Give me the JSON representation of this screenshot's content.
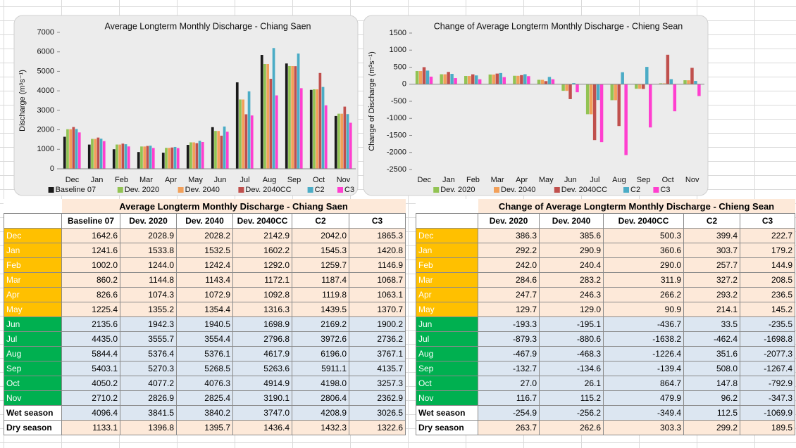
{
  "chart_data": [
    {
      "type": "bar",
      "title": "Average Longterm Monthly Discharge - Chiang Saen",
      "y_label": "Discharge (m³s⁻¹)",
      "categories": [
        "Dec",
        "Jan",
        "Feb",
        "Mar",
        "Apr",
        "May",
        "Jun",
        "Jul",
        "Aug",
        "Sep",
        "Oct",
        "Nov"
      ],
      "series": [
        {
          "name": "Baseline 07",
          "color": "#1a1a1a",
          "values": [
            1642.6,
            1241.6,
            1002.0,
            860.2,
            826.6,
            1225.4,
            2135.6,
            4435.0,
            5844.4,
            5403.1,
            4050.2,
            2710.2
          ]
        },
        {
          "name": "Dev. 2020",
          "color": "#92c353",
          "values": [
            2028.9,
            1533.8,
            1244.0,
            1144.8,
            1074.3,
            1355.2,
            1942.3,
            3555.7,
            5376.4,
            5270.3,
            4077.2,
            2826.9
          ]
        },
        {
          "name": "Dev. 2040",
          "color": "#f2a05a",
          "values": [
            2028.2,
            1532.5,
            1242.4,
            1143.4,
            1072.9,
            1354.4,
            1940.5,
            3554.4,
            5376.1,
            5268.5,
            4076.3,
            2825.4
          ]
        },
        {
          "name": "Dev. 2040CC",
          "color": "#c0504d",
          "values": [
            2142.9,
            1602.2,
            1292.0,
            1172.1,
            1092.8,
            1316.3,
            1698.9,
            2796.8,
            4617.9,
            5263.6,
            4914.9,
            3190.1
          ]
        },
        {
          "name": "C2",
          "color": "#4bacc6",
          "values": [
            2042.0,
            1545.3,
            1259.7,
            1187.4,
            1119.8,
            1439.5,
            2169.2,
            3972.6,
            6196.0,
            5911.1,
            4198.0,
            2806.4
          ]
        },
        {
          "name": "C3",
          "color": "#ff3fcf",
          "values": [
            1865.3,
            1420.8,
            1146.9,
            1068.7,
            1063.1,
            1370.7,
            1900.2,
            2736.2,
            3767.1,
            4135.7,
            3257.3,
            2362.9
          ]
        }
      ],
      "ylim": [
        0,
        7000
      ],
      "yticks": [
        0,
        1000,
        2000,
        3000,
        4000,
        5000,
        6000,
        7000
      ],
      "grid": false,
      "legend": "bottom"
    },
    {
      "type": "bar",
      "title": "Change of Average Longterm Monthly Discharge - Chieng Sean",
      "y_label": "Change of Discharge (m³s⁻¹)",
      "categories": [
        "Dec",
        "Jan",
        "Feb",
        "Mar",
        "Apr",
        "May",
        "Jun",
        "Jul",
        "Aug",
        "Sep",
        "Oct",
        "Nov"
      ],
      "series": [
        {
          "name": "Dev. 2020",
          "color": "#92c353",
          "values": [
            386.3,
            292.2,
            242.0,
            284.6,
            247.7,
            129.7,
            -193.3,
            -879.3,
            -467.9,
            -132.7,
            27.0,
            116.7
          ]
        },
        {
          "name": "Dev. 2040",
          "color": "#f2a05a",
          "values": [
            385.6,
            290.9,
            240.4,
            283.2,
            246.3,
            129.0,
            -195.1,
            -880.6,
            -468.3,
            -134.6,
            26.1,
            115.2
          ]
        },
        {
          "name": "Dev. 2040CC",
          "color": "#c0504d",
          "values": [
            500.3,
            360.6,
            290.0,
            311.9,
            266.2,
            90.9,
            -436.7,
            -1638.2,
            -1226.4,
            -139.4,
            864.7,
            479.9
          ]
        },
        {
          "name": "C2",
          "color": "#4bacc6",
          "values": [
            399.4,
            303.7,
            257.7,
            327.2,
            293.2,
            214.1,
            33.5,
            -462.4,
            351.6,
            508.0,
            147.8,
            96.2
          ]
        },
        {
          "name": "C3",
          "color": "#ff3fcf",
          "values": [
            222.7,
            179.2,
            144.9,
            208.5,
            236.5,
            145.2,
            -235.5,
            -1698.8,
            -2077.3,
            -1267.4,
            -792.9,
            -347.3
          ]
        }
      ],
      "ylim": [
        -2500,
        1500
      ],
      "yticks": [
        -2500,
        -2000,
        -1500,
        -1000,
        -500,
        0,
        500,
        1000,
        1500
      ],
      "grid": false,
      "legend": "bottom"
    }
  ],
  "tables": [
    {
      "title": "Average Longterm Monthly Discharge - Chiang Saen",
      "header": [
        "Baseline 07",
        "Dev. 2020",
        "Dev. 2040",
        "Dev. 2040CC",
        "C2",
        "C3"
      ],
      "rows": [
        {
          "label": "Dec",
          "cells": [
            "1642.6",
            "2028.9",
            "2028.2",
            "2142.9",
            "2042.0",
            "1865.3"
          ]
        },
        {
          "label": "Jan",
          "cells": [
            "1241.6",
            "1533.8",
            "1532.5",
            "1602.2",
            "1545.3",
            "1420.8"
          ]
        },
        {
          "label": "Feb",
          "cells": [
            "1002.0",
            "1244.0",
            "1242.4",
            "1292.0",
            "1259.7",
            "1146.9"
          ]
        },
        {
          "label": "Mar",
          "cells": [
            "860.2",
            "1144.8",
            "1143.4",
            "1172.1",
            "1187.4",
            "1068.7"
          ]
        },
        {
          "label": "Apr",
          "cells": [
            "826.6",
            "1074.3",
            "1072.9",
            "1092.8",
            "1119.8",
            "1063.1"
          ]
        },
        {
          "label": "May",
          "cells": [
            "1225.4",
            "1355.2",
            "1354.4",
            "1316.3",
            "1439.5",
            "1370.7"
          ]
        },
        {
          "label": "Jun",
          "cells": [
            "2135.6",
            "1942.3",
            "1940.5",
            "1698.9",
            "2169.2",
            "1900.2"
          ]
        },
        {
          "label": "Jul",
          "cells": [
            "4435.0",
            "3555.7",
            "3554.4",
            "2796.8",
            "3972.6",
            "2736.2"
          ]
        },
        {
          "label": "Aug",
          "cells": [
            "5844.4",
            "5376.4",
            "5376.1",
            "4617.9",
            "6196.0",
            "3767.1"
          ]
        },
        {
          "label": "Sep",
          "cells": [
            "5403.1",
            "5270.3",
            "5268.5",
            "5263.6",
            "5911.1",
            "4135.7"
          ]
        },
        {
          "label": "Oct",
          "cells": [
            "4050.2",
            "4077.2",
            "4076.3",
            "4914.9",
            "4198.0",
            "3257.3"
          ]
        },
        {
          "label": "Nov",
          "cells": [
            "2710.2",
            "2826.9",
            "2825.4",
            "3190.1",
            "2806.4",
            "2362.9"
          ]
        },
        {
          "label": "Wet season",
          "cells": [
            "4096.4",
            "3841.5",
            "3840.2",
            "3747.0",
            "4208.9",
            "3026.5"
          ]
        },
        {
          "label": "Dry season",
          "cells": [
            "1133.1",
            "1396.8",
            "1395.7",
            "1436.4",
            "1432.3",
            "1322.6"
          ]
        }
      ]
    },
    {
      "title": "Change of Average Longterm Monthly Discharge - Chieng Sean",
      "header": [
        "Dev. 2020",
        "Dev. 2040",
        "Dev. 2040CC",
        "C2",
        "C3"
      ],
      "rows": [
        {
          "label": "Dec",
          "cells": [
            "386.3",
            "385.6",
            "500.3",
            "399.4",
            "222.7"
          ]
        },
        {
          "label": "Jan",
          "cells": [
            "292.2",
            "290.9",
            "360.6",
            "303.7",
            "179.2"
          ]
        },
        {
          "label": "Feb",
          "cells": [
            "242.0",
            "240.4",
            "290.0",
            "257.7",
            "144.9"
          ]
        },
        {
          "label": "Mar",
          "cells": [
            "284.6",
            "283.2",
            "311.9",
            "327.2",
            "208.5"
          ]
        },
        {
          "label": "Apr",
          "cells": [
            "247.7",
            "246.3",
            "266.2",
            "293.2",
            "236.5"
          ]
        },
        {
          "label": "May",
          "cells": [
            "129.7",
            "129.0",
            "90.9",
            "214.1",
            "145.2"
          ]
        },
        {
          "label": "Jun",
          "cells": [
            "-193.3",
            "-195.1",
            "-436.7",
            "33.5",
            "-235.5"
          ]
        },
        {
          "label": "Jul",
          "cells": [
            "-879.3",
            "-880.6",
            "-1638.2",
            "-462.4",
            "-1698.8"
          ]
        },
        {
          "label": "Aug",
          "cells": [
            "-467.9",
            "-468.3",
            "-1226.4",
            "351.6",
            "-2077.3"
          ]
        },
        {
          "label": "Sep",
          "cells": [
            "-132.7",
            "-134.6",
            "-139.4",
            "508.0",
            "-1267.4"
          ]
        },
        {
          "label": "Oct",
          "cells": [
            "27.0",
            "26.1",
            "864.7",
            "147.8",
            "-792.9"
          ]
        },
        {
          "label": "Nov",
          "cells": [
            "116.7",
            "115.2",
            "479.9",
            "96.2",
            "-347.3"
          ]
        },
        {
          "label": "Wet season",
          "cells": [
            "-254.9",
            "-256.2",
            "-349.4",
            "112.5",
            "-1069.9"
          ]
        },
        {
          "label": "Dry season",
          "cells": [
            "263.7",
            "262.6",
            "303.3",
            "299.2",
            "189.5"
          ]
        }
      ]
    }
  ]
}
